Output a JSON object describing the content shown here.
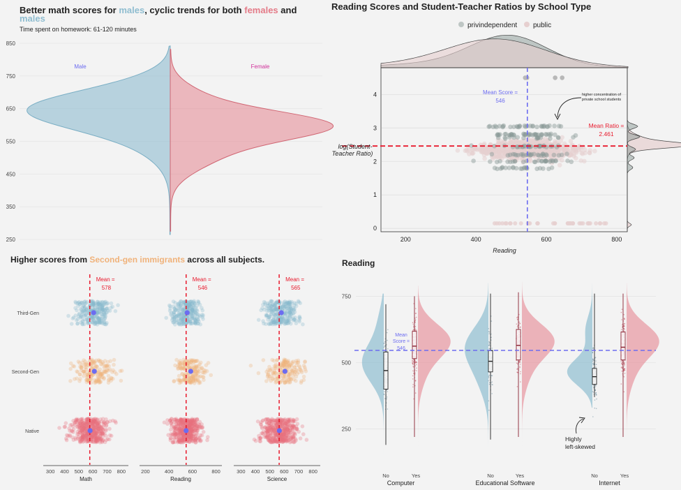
{
  "colors": {
    "male": "#8fbdd0",
    "female": "#e47b88",
    "second": "#f0b27a",
    "third": "#88b8cc",
    "native": "#e8707f",
    "mean_red": "#e8192c",
    "mean_blue": "#6c6cf0",
    "priv": "#8a9a96",
    "public": "#e6cfcf"
  },
  "panel1": {
    "title_parts": [
      "Better math scores for ",
      "males",
      ", cyclic trends for both ",
      "females",
      " and"
    ],
    "title_line2": "males",
    "subtitle": "Time spent on homework: 61-120 minutes",
    "label_male": "Male",
    "label_female": "Female"
  },
  "panel2": {
    "title": "Reading Scores and Student-Teacher Ratios by School Type",
    "legend": [
      "privindependent",
      "public"
    ],
    "ylabel_line1": "log(Student-",
    "ylabel_line2": "Teacher Ratio)",
    "xlabel": "Reading",
    "mean_score_l1": "Mean Score =",
    "mean_score_l2": "546",
    "mean_ratio_l1": "Mean Ratio =",
    "mean_ratio_l2": "2.461",
    "note_l1": "higher concentration of",
    "note_l2": "private school students"
  },
  "panel3": {
    "title_parts": [
      "Higher scores from ",
      "Second-gen immigrants",
      " across all subjects."
    ],
    "mean_word": "Mean =",
    "groups": [
      "Third-Gen",
      "Second-Gen",
      "Native"
    ]
  },
  "panel4": {
    "title": "Reading",
    "mean_l1": "Mean",
    "mean_l2": "Score =",
    "mean_l3": "546",
    "skew_l1": "Highly",
    "skew_l2": "left-skewed"
  },
  "chart_data": [
    {
      "type": "violin",
      "id": "math-by-gender",
      "ylim": [
        250,
        850
      ],
      "yticks": [
        250,
        350,
        450,
        550,
        650,
        750,
        850
      ],
      "series": [
        {
          "name": "Male",
          "peak": 650
        },
        {
          "name": "Female",
          "peak": 600
        }
      ]
    },
    {
      "type": "scatter",
      "id": "reading-vs-ratio",
      "xlim": [
        130,
        830
      ],
      "xticks": [
        200,
        400,
        600,
        800
      ],
      "ylim": [
        -0.1,
        4.8
      ],
      "yticks": [
        0,
        1,
        2,
        3,
        4
      ],
      "mean_x": 546,
      "mean_y": 2.461,
      "series": [
        {
          "name": "privindependent"
        },
        {
          "name": "public"
        }
      ]
    },
    {
      "type": "scatter",
      "id": "scores-by-generation",
      "facets": [
        {
          "subject": "Math",
          "xlim": [
            250,
            850
          ],
          "xticks": [
            300,
            400,
            500,
            600,
            700,
            800
          ],
          "mean": 578,
          "group_means": {
            "Third-Gen": 605,
            "Second-Gen": 610,
            "Native": 580
          }
        },
        {
          "subject": "Reading",
          "xlim": [
            150,
            850
          ],
          "xticks": [
            200,
            400,
            600,
            800
          ],
          "mean": 546,
          "group_means": {
            "Third-Gen": 555,
            "Second-Gen": 585,
            "Native": 546
          }
        },
        {
          "subject": "Science",
          "xlim": [
            250,
            850
          ],
          "xticks": [
            300,
            400,
            500,
            600,
            700,
            800
          ],
          "mean": 565,
          "group_means": {
            "Third-Gen": 580,
            "Second-Gen": 605,
            "Native": 566
          }
        }
      ]
    },
    {
      "type": "violin",
      "id": "reading-by-ict",
      "ylim": [
        120,
        830
      ],
      "yticks": [
        250,
        500,
        750
      ],
      "mean": 546,
      "groups": [
        {
          "name": "Computer",
          "categories": [
            "No",
            "Yes"
          ],
          "medians": [
            470,
            562
          ],
          "q1": [
            400,
            515
          ],
          "q3": [
            540,
            618
          ]
        },
        {
          "name": "Educational Software",
          "categories": [
            "No",
            "Yes"
          ],
          "medians": [
            505,
            565
          ],
          "q1": [
            465,
            510
          ],
          "q3": [
            545,
            625
          ]
        },
        {
          "name": "Internet",
          "categories": [
            "No",
            "Yes"
          ],
          "medians": [
            447,
            558
          ],
          "q1": [
            418,
            510
          ],
          "q3": [
            478,
            615
          ]
        }
      ]
    }
  ]
}
